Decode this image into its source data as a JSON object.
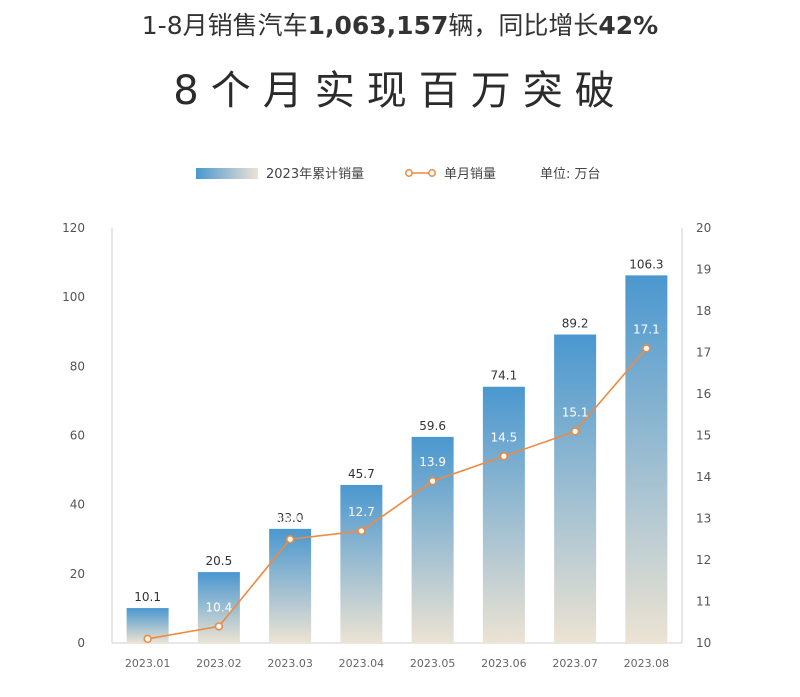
{
  "header": {
    "subtitle_prefix": "1-8月销售汽车",
    "subtitle_total": "1,063,157",
    "subtitle_unit_mid": "辆，同比增长",
    "subtitle_growth": "42%",
    "headline": "8个月实现百万突破"
  },
  "colors": {
    "bar_top": "#4a97cf",
    "bar_bottom": "#ece3d3",
    "line": "#ef8a3f",
    "axis": "#cfcfcf"
  },
  "chart_data": {
    "type": "bar",
    "categories": [
      "2023.01",
      "2023.02",
      "2023.03",
      "2023.04",
      "2023.05",
      "2023.06",
      "2023.07",
      "2023.08"
    ],
    "series": [
      {
        "name": "2023年累计销量",
        "type": "bar",
        "axis": "left",
        "values": [
          10.1,
          20.5,
          33.0,
          45.7,
          59.6,
          74.1,
          89.2,
          106.3
        ],
        "labels": [
          "10.1",
          "20.5",
          "33.0",
          "45.7",
          "59.6",
          "74.1",
          "89.2",
          "106.3"
        ]
      },
      {
        "name": "单月销量",
        "type": "line",
        "axis": "right",
        "values": [
          10.1,
          10.4,
          12.5,
          12.7,
          13.9,
          14.5,
          15.1,
          17.1
        ],
        "labels": [
          "",
          "10.4",
          "12.5",
          "12.7",
          "13.9",
          "14.5",
          "15.1",
          "17.1"
        ]
      }
    ],
    "ylim": [
      0,
      120
    ],
    "yticks": [
      0,
      20,
      40,
      60,
      80,
      100,
      120
    ],
    "y2lim": [
      10,
      20
    ],
    "y2ticks": [
      10,
      11,
      12,
      13,
      14,
      15,
      16,
      17,
      18,
      19,
      20
    ],
    "unit_note": "单位: 万台",
    "legend_position": "top-center",
    "grid": false
  }
}
